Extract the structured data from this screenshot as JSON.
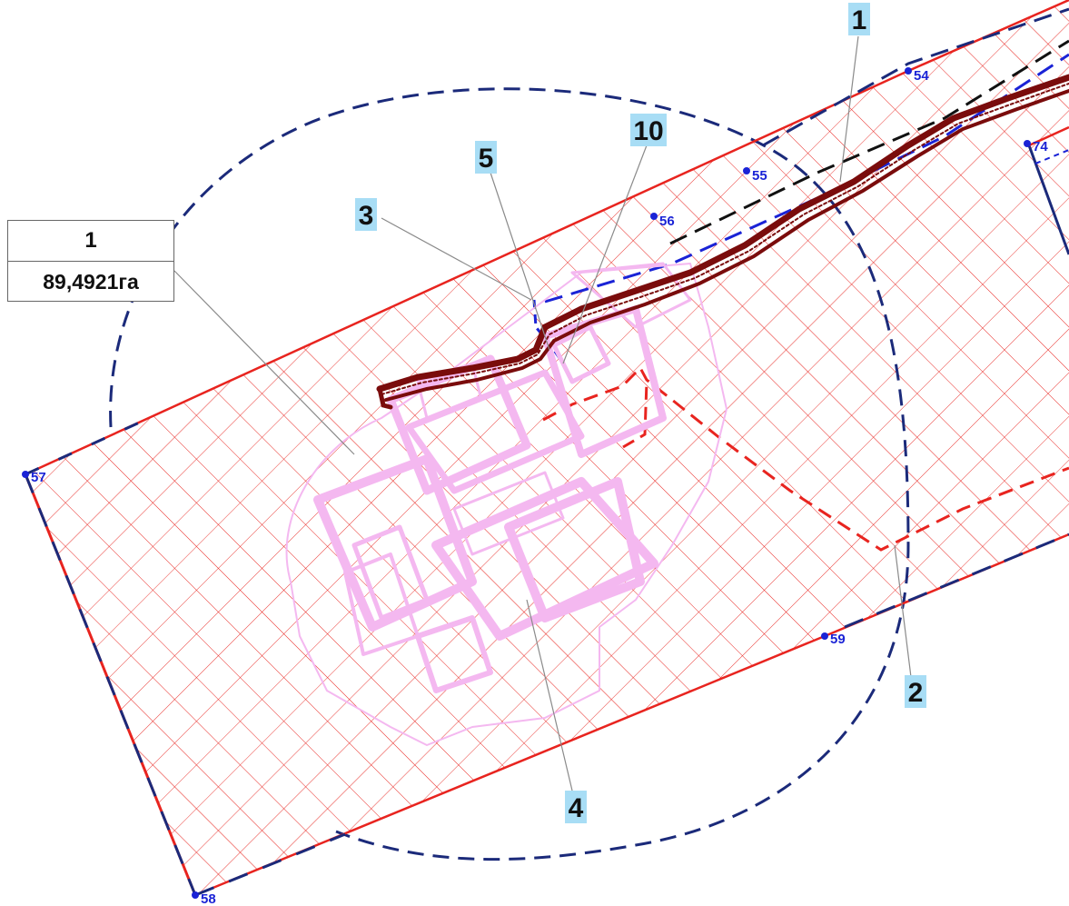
{
  "parcel": {
    "number": "1",
    "area": "89,4921га"
  },
  "colors": {
    "parcel_boundary": "#e8241f",
    "hatch": "#e8241f",
    "zone_circle": "#1b2a7a",
    "road": "#7a0c0c",
    "buildings": "#f4b8f0",
    "callout_bg": "#a8ddf5",
    "vertex": "#1a23d6",
    "leader": "#8a8a8a"
  },
  "callouts": [
    {
      "id": "c1",
      "label": "1"
    },
    {
      "id": "c10",
      "label": "10"
    },
    {
      "id": "c5",
      "label": "5"
    },
    {
      "id": "c3",
      "label": "3"
    },
    {
      "id": "c2",
      "label": "2"
    },
    {
      "id": "c4",
      "label": "4"
    }
  ],
  "vertices": [
    {
      "id": "54",
      "label": "54"
    },
    {
      "id": "55",
      "label": "55"
    },
    {
      "id": "56",
      "label": "56"
    },
    {
      "id": "57",
      "label": "57"
    },
    {
      "id": "58",
      "label": "58"
    },
    {
      "id": "59",
      "label": "59"
    },
    {
      "id": "74",
      "label": "74"
    }
  ]
}
